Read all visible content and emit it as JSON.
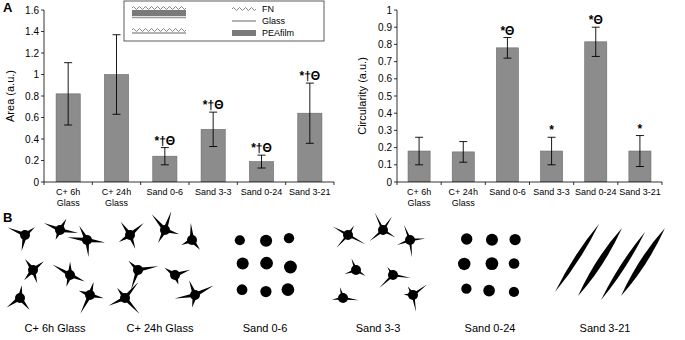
{
  "panel_labels": [
    "A",
    "B"
  ],
  "legend_inset": {
    "items": [
      "FN",
      "Glass",
      "PEAfilm"
    ]
  },
  "cell_shapes": {
    "labels": [
      "C+ 6h Glass",
      "C+ 24h Glass",
      "Sand 0-6",
      "Sand 3-3",
      "Sand 0-24",
      "Sand 3-21"
    ]
  },
  "chart_data": [
    {
      "type": "bar",
      "y_label": "Area (a.u.)",
      "categories": [
        "C+ 6h Glass",
        "C+ 24h Glass",
        "Sand 0-6",
        "Sand 3-3",
        "Sand 0-24",
        "Sand 3-21"
      ],
      "values": [
        0.82,
        1.0,
        0.24,
        0.49,
        0.19,
        0.64
      ],
      "errors": [
        0.29,
        0.37,
        0.08,
        0.16,
        0.06,
        0.28
      ],
      "annotations": [
        null,
        null,
        "*†Θ",
        "*†Θ",
        "*†Θ",
        "*†Θ"
      ],
      "color": "#8c8c8c",
      "ylim": [
        0,
        1.6
      ],
      "yticks": [
        0,
        0.2,
        0.4,
        0.6,
        0.8,
        1,
        1.2,
        1.4,
        1.6
      ],
      "grid": false
    },
    {
      "type": "bar",
      "y_label": "Circularity (a.u.)",
      "categories": [
        "C+ 6h Glass",
        "C+ 24h Glass",
        "Sand 0-6",
        "Sand 3-3",
        "Sand 0-24",
        "Sand 3-21"
      ],
      "values": [
        0.18,
        0.175,
        0.78,
        0.18,
        0.815,
        0.18
      ],
      "errors": [
        0.08,
        0.06,
        0.06,
        0.08,
        0.085,
        0.09
      ],
      "annotations": [
        null,
        null,
        "*Θ",
        "*",
        "*Θ",
        "*"
      ],
      "color": "#8c8c8c",
      "ylim": [
        0,
        1
      ],
      "yticks": [
        0,
        0.1,
        0.2,
        0.3,
        0.4,
        0.5,
        0.6,
        0.7,
        0.8,
        0.9,
        1
      ],
      "grid": false
    }
  ]
}
